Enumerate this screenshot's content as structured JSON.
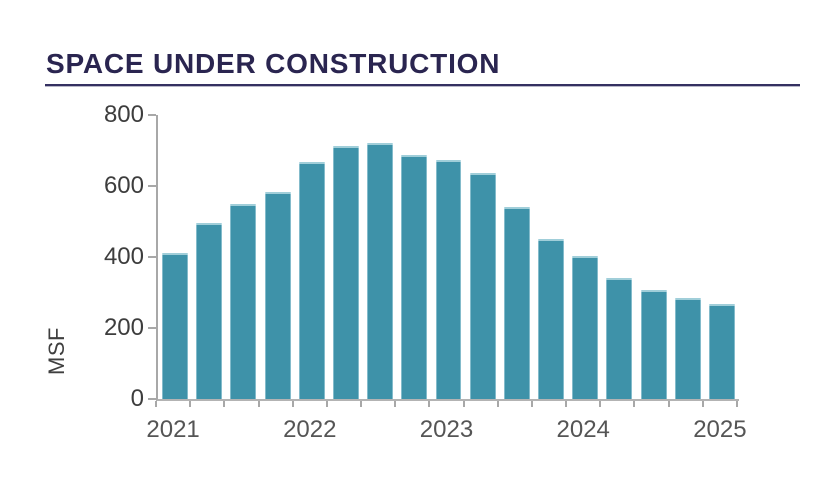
{
  "header": {
    "title": "SPACE UNDER CONSTRUCTION"
  },
  "chart_data": {
    "type": "bar",
    "title": "SPACE UNDER CONSTRUCTION",
    "categories": [
      "Q1 2021",
      "Q2 2021",
      "Q3 2021",
      "Q4 2021",
      "Q1 2022",
      "Q2 2022",
      "Q3 2022",
      "Q4 2022",
      "Q1 2023",
      "Q2 2023",
      "Q3 2023",
      "Q4 2023",
      "Q1 2024",
      "Q2 2024",
      "Q3 2024",
      "Q4 2024",
      "Q1 2025"
    ],
    "values": [
      410,
      497,
      550,
      582,
      668,
      713,
      720,
      686,
      672,
      637,
      542,
      452,
      402,
      340,
      308,
      284,
      268
    ],
    "xlabel": "",
    "ylabel": "MSF",
    "ylim": [
      0,
      800
    ],
    "yticks": [
      0,
      200,
      400,
      600,
      800
    ],
    "xticks": [
      {
        "label": "2021",
        "slot": 0
      },
      {
        "label": "2022",
        "slot": 4
      },
      {
        "label": "2023",
        "slot": 8
      },
      {
        "label": "2024",
        "slot": 12
      },
      {
        "label": "2025",
        "slot": 16
      }
    ],
    "grid": false,
    "legend": false,
    "colors": {
      "bar": "#3E92A9",
      "bar_edge_highlight": "#D6EEF3",
      "axis": "#A8A8A8",
      "ytick_label": "#3D3D3D",
      "xtick_label": "#555555",
      "title": "#2A2550",
      "title_rule": "#343061"
    }
  }
}
